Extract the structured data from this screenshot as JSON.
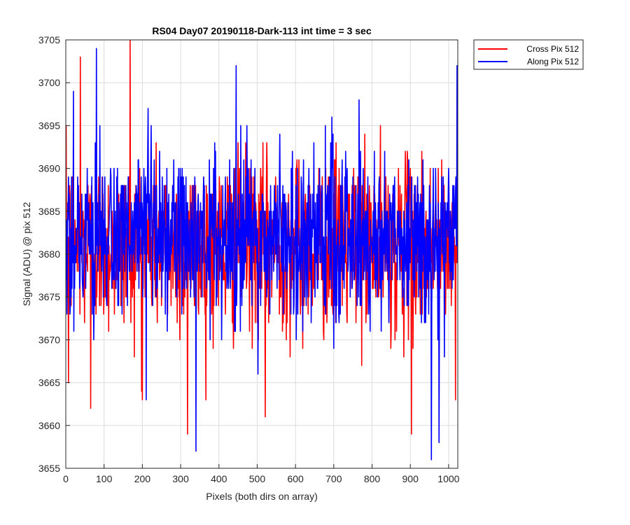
{
  "chart_data": {
    "type": "line",
    "title": "RS04 Day07 20190118-Dark-113 int time = 3 sec",
    "xlabel": "Pixels (both dirs on array)",
    "ylabel": "Signal (ADU) @ pix 512",
    "xlim": [
      0,
      1024
    ],
    "ylim": [
      3655,
      3705
    ],
    "x_ticks": [
      0,
      100,
      200,
      300,
      400,
      500,
      600,
      700,
      800,
      900,
      1000
    ],
    "y_ticks": [
      3655,
      3660,
      3665,
      3670,
      3675,
      3680,
      3685,
      3690,
      3695,
      3700,
      3705
    ],
    "grid": true,
    "legend_position": "outside-top-right",
    "series": [
      {
        "name": "Cross Pix 512",
        "color": "#ff0000",
        "peaks": [
          [
            7,
            3665
          ],
          [
            38,
            3703
          ],
          [
            65,
            3662
          ],
          [
            168,
            3705
          ],
          [
            198,
            3664
          ],
          [
            318,
            3659
          ],
          [
            521,
            3661
          ],
          [
            903,
            3659
          ],
          [
            1018,
            3663
          ]
        ],
        "mean": 3681,
        "noise_std": 5
      },
      {
        "name": "Along Pix 512",
        "color": "#0000ff",
        "peaks": [
          [
            20,
            3699
          ],
          [
            80,
            3704
          ],
          [
            210,
            3663
          ],
          [
            340,
            3657
          ],
          [
            445,
            3702
          ],
          [
            955,
            3656
          ],
          [
            975,
            3658
          ],
          [
            1022,
            3702
          ]
        ],
        "mean": 3682,
        "noise_std": 5
      }
    ]
  }
}
